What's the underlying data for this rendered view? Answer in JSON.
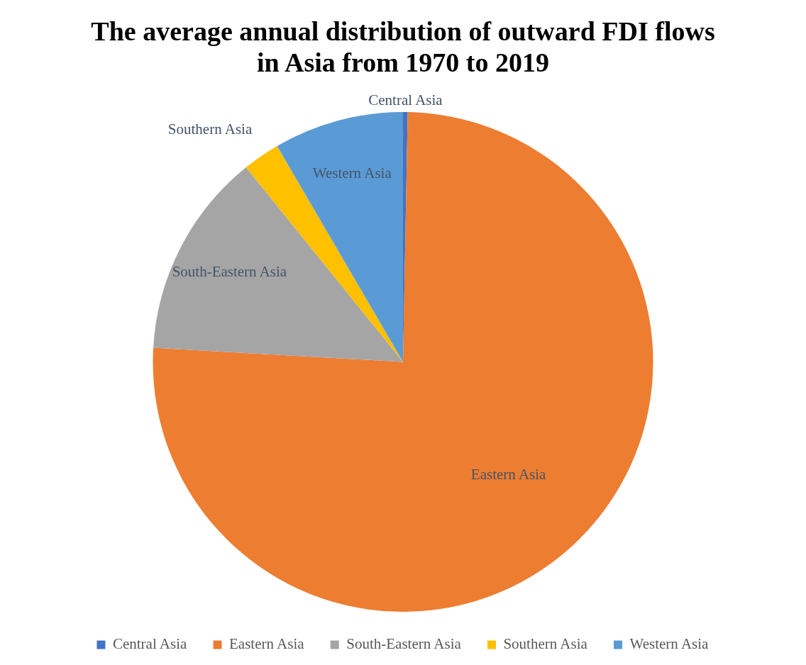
{
  "chart_data": {
    "type": "pie",
    "title": "The average annual distribution of outward FDI flows in Asia from 1970 to 2019",
    "categories": [
      "Central Asia",
      "Eastern Asia",
      "South-Eastern Asia",
      "Southern Asia",
      "Western Asia"
    ],
    "values": [
      0.3,
      75.6,
      13.3,
      2.4,
      8.4
    ],
    "colors": [
      "#4472c4",
      "#ed7d31",
      "#a5a5a5",
      "#ffc000",
      "#5b9bd5"
    ],
    "legend": "bottom"
  }
}
